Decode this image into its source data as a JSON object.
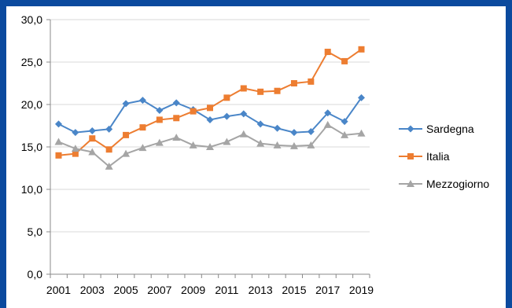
{
  "chart_data": {
    "type": "line",
    "title": "",
    "xlabel": "",
    "ylabel": "",
    "ylim": [
      0,
      30
    ],
    "y_ticks": [
      "0,0",
      "5,0",
      "10,0",
      "15,0",
      "20,0",
      "25,0",
      "30,0"
    ],
    "x": [
      2001,
      2002,
      2003,
      2004,
      2005,
      2006,
      2007,
      2008,
      2009,
      2010,
      2011,
      2012,
      2013,
      2014,
      2015,
      2016,
      2017,
      2018,
      2019
    ],
    "x_tick_labels": [
      "2001",
      "2003",
      "2005",
      "2007",
      "2009",
      "2011",
      "2013",
      "2015",
      "2017",
      "2019"
    ],
    "legend_position": "right",
    "grid": "horizontal",
    "series": [
      {
        "name": "Sardegna",
        "color": "#4a86c8",
        "marker": "diamond",
        "values": [
          17.7,
          16.7,
          16.9,
          17.1,
          20.1,
          20.5,
          19.3,
          20.2,
          19.4,
          18.2,
          18.6,
          18.9,
          17.7,
          17.2,
          16.7,
          16.8,
          19.0,
          18.0,
          20.8
        ]
      },
      {
        "name": "Italia",
        "color": "#ed7d31",
        "marker": "square",
        "values": [
          14.0,
          14.2,
          16.0,
          14.7,
          16.4,
          17.3,
          18.2,
          18.4,
          19.2,
          19.6,
          20.8,
          21.9,
          21.5,
          21.6,
          22.5,
          22.7,
          26.2,
          25.1,
          26.5
        ]
      },
      {
        "name": "Mezzogiorno",
        "color": "#a5a5a5",
        "marker": "triangle",
        "values": [
          15.6,
          14.8,
          14.4,
          12.7,
          14.2,
          14.9,
          15.5,
          16.1,
          15.2,
          15.0,
          15.6,
          16.5,
          15.4,
          15.2,
          15.1,
          15.2,
          17.6,
          16.4,
          16.6
        ]
      }
    ]
  }
}
